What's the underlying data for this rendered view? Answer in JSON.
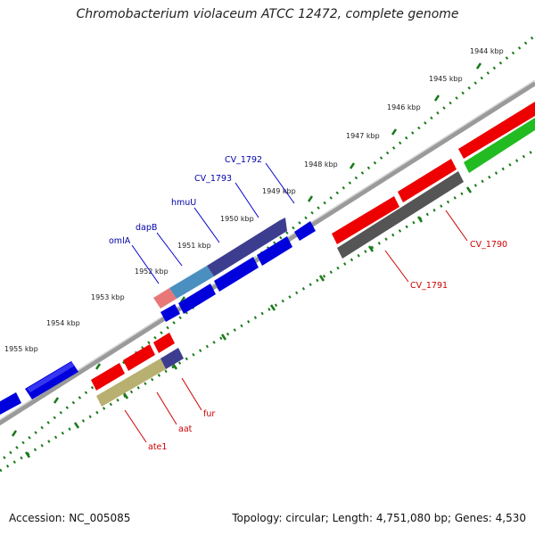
{
  "title": "Chromobacterium violaceum ATCC 12472, complete genome",
  "footer": {
    "accession": "Accession: NC_005085",
    "stats": "Topology: circular; Length: 4,751,080 bp; Genes: 4,530"
  },
  "scale_labels": [
    "1944 kbp",
    "1945 kbp",
    "1946 kbp",
    "1947 kbp",
    "1948 kbp",
    "1949 kbp",
    "1950 kbp",
    "1951 kbp",
    "1952 kbp",
    "1953 kbp",
    "1954 kbp",
    "1955 kbp"
  ],
  "colors": {
    "forward_cds": "#0000ee",
    "reverse_cds": "#ee0000",
    "backbone": "#808080",
    "ruler_dots": "#1a7a1a",
    "label_forward": "#0000aa",
    "label_reverse": "#cc0000"
  },
  "genes_labeled": [
    {
      "name": "CV_1792",
      "strand": "forward",
      "color": "#3a3a8c"
    },
    {
      "name": "CV_1793",
      "strand": "forward",
      "color": "#3a3a8c"
    },
    {
      "name": "hmuU",
      "strand": "forward",
      "color": "#0000ee"
    },
    {
      "name": "dapB",
      "strand": "forward",
      "color": "#4a8fc0"
    },
    {
      "name": "omlA",
      "strand": "forward",
      "color": "#e87878"
    },
    {
      "name": "CV_1790",
      "strand": "reverse",
      "color": "#33cc33"
    },
    {
      "name": "CV_1791",
      "strand": "reverse",
      "color": "#555555"
    },
    {
      "name": "fur",
      "strand": "reverse",
      "color": "#3a3a8c"
    },
    {
      "name": "aat",
      "strand": "reverse",
      "color": "#b8b070"
    },
    {
      "name": "ate1",
      "strand": "reverse",
      "color": "#ee0000"
    }
  ]
}
